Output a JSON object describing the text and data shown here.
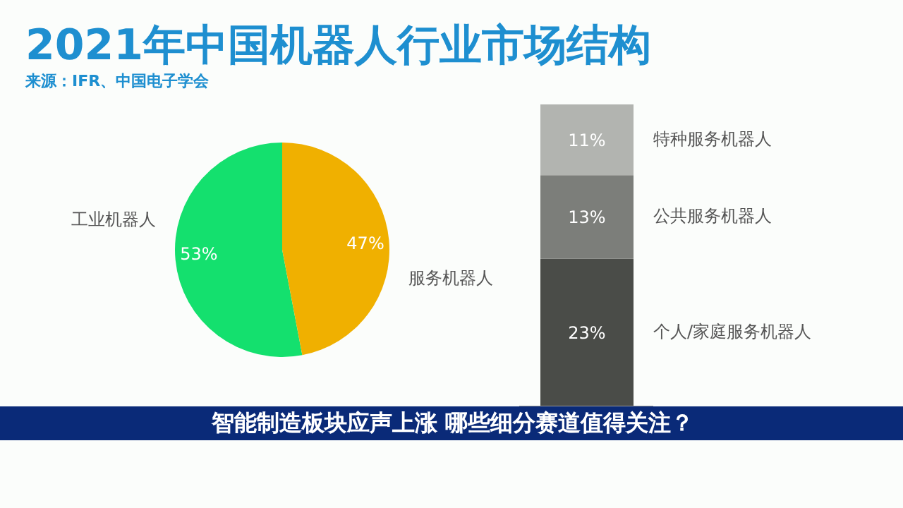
{
  "chart_data": [
    {
      "type": "pie",
      "title": "2021年中国机器人行业市场结构",
      "annotations": [
        "来源：IFR、中国电子学会",
        "智能制造板块应声上涨 哪些细分赛道值得关注？"
      ],
      "categories": [
        "工业机器人",
        "服务机器人"
      ],
      "values": [
        53,
        47
      ],
      "colors": [
        "#14e06e",
        "#f0b000"
      ],
      "value_labels": [
        "53%",
        "47%"
      ],
      "legend": false
    },
    {
      "type": "bar",
      "stacked": true,
      "categories": [
        null
      ],
      "legend": false,
      "series": [
        {
          "name": "个人/家庭服务机器人",
          "color": "#4a4c48",
          "values": [
            23
          ],
          "value_labels": [
            "23%"
          ]
        },
        {
          "name": "公共服务机器人",
          "color": "#7c7e7a",
          "values": [
            13
          ],
          "value_labels": [
            "13%"
          ]
        },
        {
          "name": "特种服务机器人",
          "color": "#b2b4b0",
          "values": [
            11
          ],
          "value_labels": [
            "11%"
          ]
        }
      ]
    }
  ]
}
